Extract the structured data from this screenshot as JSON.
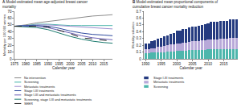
{
  "chart_data": [
    {
      "type": "line",
      "label": "A",
      "title": "Model-estimated mean age-adjusted breast cancer mortality",
      "xlabel": "Calendar year",
      "ylabel": "Mortality per 100 000 women",
      "x": [
        1975,
        1980,
        1985,
        1990,
        1995,
        2000,
        2005,
        2010,
        2015,
        2019
      ],
      "series": [
        {
          "name": "No intervention",
          "color": "#8c8c8c",
          "values": [
            48,
            50,
            53,
            55,
            57,
            59,
            61,
            63,
            64,
            65
          ]
        },
        {
          "name": "Screening",
          "color": "#4db6ac",
          "values": [
            48,
            49,
            51,
            51,
            50,
            49,
            49,
            49,
            49,
            49
          ]
        },
        {
          "name": "Metastatic treatments",
          "color": "#9e8fd0",
          "values": [
            48,
            49,
            50,
            50,
            49,
            48,
            47,
            46,
            45,
            44
          ]
        },
        {
          "name": "Stage I-III treatments",
          "color": "#2e4a9e",
          "values": [
            48,
            49,
            49,
            48,
            45,
            41,
            38,
            36,
            35,
            34
          ]
        },
        {
          "name": "Stage I-III and metastatic treatments",
          "color": "#6b5fb5",
          "values": [
            48,
            48,
            48,
            46,
            42,
            38,
            34,
            31,
            29,
            28
          ]
        },
        {
          "name": "Screening, stage I-III and metastatic treatments",
          "color": "#1b7a6e",
          "values": [
            48,
            47,
            46,
            43,
            38,
            33,
            29,
            26,
            24,
            23
          ]
        },
        {
          "name": "SEER",
          "color": "#222222",
          "line_style": "dashed",
          "values": [
            48,
            48,
            48,
            47,
            42,
            37,
            31,
            29,
            27,
            26
          ]
        }
      ],
      "xlim": [
        1975,
        2019
      ],
      "xticks": [
        1975,
        1980,
        1985,
        1990,
        1995,
        2000,
        2005,
        2010,
        2015
      ],
      "ylim": [
        0,
        70
      ],
      "yticks": [
        0,
        10,
        20,
        30,
        40,
        50,
        60,
        70
      ],
      "grid": false
    },
    {
      "type": "bar",
      "stacked": true,
      "label": "B",
      "title": "Model-estimated mean proportional components of cumulative breast cancer mortality reduction",
      "xlabel": "Calendar year",
      "ylabel": "Mortality reduction",
      "x": [
        1990,
        1991,
        1992,
        1993,
        1994,
        1995,
        1996,
        1997,
        1998,
        1999,
        2000,
        2001,
        2002,
        2003,
        2004,
        2005,
        2006,
        2007,
        2008,
        2009,
        2010,
        2011,
        2012,
        2013,
        2014,
        2015,
        2016,
        2017,
        2018,
        2019
      ],
      "series": [
        {
          "name": "Screening",
          "color": "#4db6ac",
          "values": [
            0.08,
            0.08,
            0.09,
            0.09,
            0.1,
            0.1,
            0.1,
            0.11,
            0.11,
            0.11,
            0.12,
            0.12,
            0.12,
            0.12,
            0.13,
            0.13,
            0.13,
            0.13,
            0.13,
            0.13,
            0.14,
            0.14,
            0.14,
            0.14,
            0.14,
            0.14,
            0.14,
            0.14,
            0.14,
            0.14
          ]
        },
        {
          "name": "Metastatic treatments",
          "color": "#b8a9d9",
          "values": [
            0.06,
            0.06,
            0.07,
            0.07,
            0.08,
            0.08,
            0.09,
            0.09,
            0.1,
            0.1,
            0.11,
            0.11,
            0.12,
            0.12,
            0.12,
            0.13,
            0.13,
            0.13,
            0.14,
            0.14,
            0.14,
            0.15,
            0.15,
            0.15,
            0.16,
            0.16,
            0.16,
            0.17,
            0.17,
            0.17
          ]
        },
        {
          "name": "Stage I-III treatments",
          "color": "#253b80",
          "values": [
            0.08,
            0.09,
            0.1,
            0.11,
            0.12,
            0.13,
            0.14,
            0.15,
            0.16,
            0.17,
            0.18,
            0.19,
            0.2,
            0.2,
            0.21,
            0.22,
            0.22,
            0.23,
            0.23,
            0.24,
            0.24,
            0.25,
            0.25,
            0.25,
            0.26,
            0.26,
            0.26,
            0.27,
            0.27,
            0.27
          ]
        }
      ],
      "xlim": [
        1989.5,
        2019.5
      ],
      "xticks": [
        1990,
        1995,
        2000,
        2005,
        2010,
        2015
      ],
      "ylim": [
        0,
        0.7
      ],
      "yticks": [
        0,
        0.1,
        0.2,
        0.3,
        0.4,
        0.5,
        0.6,
        0.7
      ],
      "grid": false
    }
  ]
}
